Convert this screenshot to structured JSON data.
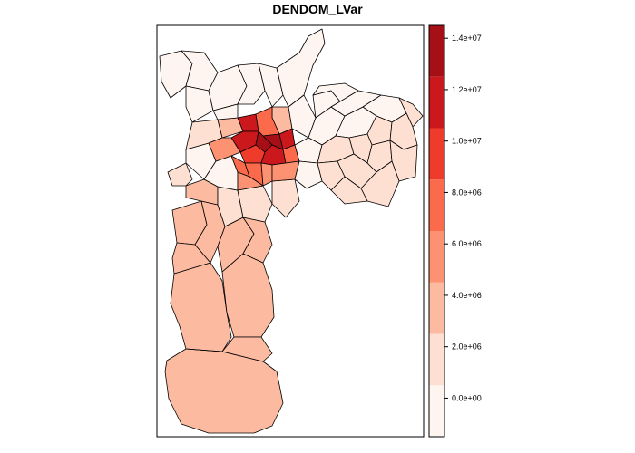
{
  "title": "DENDOM_LVar",
  "legend": {
    "labels": [
      "0.0e+00",
      "2.0e+06",
      "4.0e+06",
      "6.0e+06",
      "8.0e+06",
      "1.0e+07",
      "1.2e+07",
      "1.4e+07"
    ],
    "colors": [
      "#fff5f0",
      "#fee0d2",
      "#fcbba1",
      "#fc9272",
      "#fb6a4a",
      "#ef3b2c",
      "#cb181d",
      "#a50f15"
    ]
  }
}
